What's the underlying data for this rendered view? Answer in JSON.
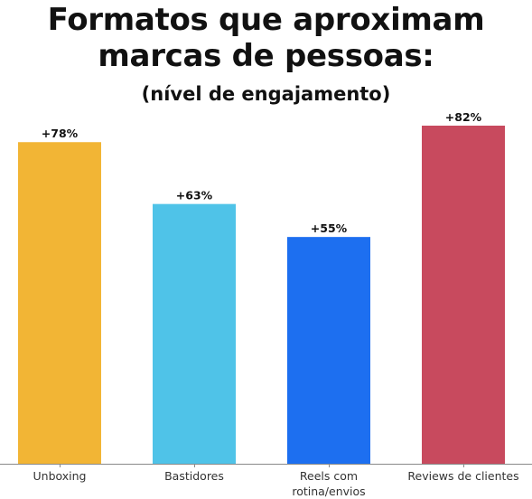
{
  "chart_data": {
    "type": "bar",
    "title": "Formatos que aproximam marcas de pessoas:",
    "subtitle": "(nível de engajamento)",
    "xlabel": "",
    "ylabel": "",
    "categories": [
      "Unboxing",
      "Bastidores",
      "Reels com rotina/envios",
      "Reviews de clientes"
    ],
    "category_lines": [
      [
        "Unboxing"
      ],
      [
        "Bastidores"
      ],
      [
        "Reels com",
        "rotina/envios"
      ],
      [
        "Reviews de clientes"
      ]
    ],
    "values": [
      78,
      63,
      55,
      82
    ],
    "value_labels": [
      "+78%",
      "+63%",
      "+55%",
      "+82%"
    ],
    "colors": [
      "#F2B535",
      "#4FC3E8",
      "#1D6FF0",
      "#C84A5E"
    ],
    "ylim": [
      0,
      82
    ],
    "grid": false,
    "legend": "none"
  }
}
